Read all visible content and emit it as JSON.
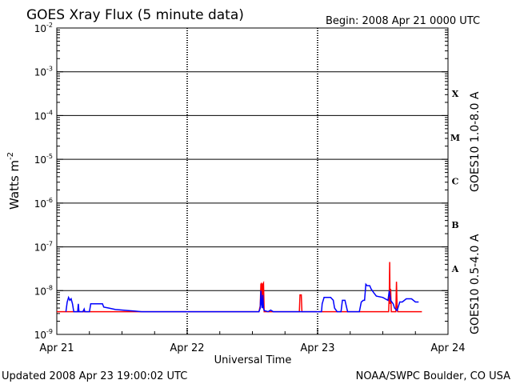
{
  "chart_data": {
    "type": "line",
    "title": "GOES Xray Flux (5 minute data)",
    "begin_label": "Begin:  2008 Apr 21 0000 UTC",
    "xlabel": "Universal Time",
    "ylabel": "Watts m",
    "ylabel_exp": "-2",
    "x_ticks": [
      "Apr 21",
      "Apr 22",
      "Apr 23",
      "Apr 24"
    ],
    "x_range_days": [
      0,
      3
    ],
    "y_scale": "log",
    "y_ticks": [
      {
        "base": "10",
        "exp": "-2",
        "value": 0.01
      },
      {
        "base": "10",
        "exp": "-3",
        "value": 0.001
      },
      {
        "base": "10",
        "exp": "-4",
        "value": 0.0001
      },
      {
        "base": "10",
        "exp": "-5",
        "value": 1e-05
      },
      {
        "base": "10",
        "exp": "-6",
        "value": 1e-06
      },
      {
        "base": "10",
        "exp": "-7",
        "value": 1e-07
      },
      {
        "base": "10",
        "exp": "-8",
        "value": 1e-08
      },
      {
        "base": "10",
        "exp": "-9",
        "value": 1e-09
      }
    ],
    "flare_classes": [
      {
        "label": "X",
        "range": [
          0.0001,
          0.001
        ]
      },
      {
        "label": "M",
        "range": [
          1e-05,
          0.0001
        ]
      },
      {
        "label": "C",
        "range": [
          1e-06,
          1e-05
        ]
      },
      {
        "label": "B",
        "range": [
          1e-07,
          1e-06
        ]
      },
      {
        "label": "A",
        "range": [
          1e-08,
          1e-07
        ]
      }
    ],
    "grid": true,
    "series": [
      {
        "name": "GOES10 1.0-8.0 A",
        "color": "#ff0000",
        "points": [
          [
            0.0,
            3.3e-09
          ],
          [
            1.55,
            3.3e-09
          ],
          [
            1.56,
            4.5e-09
          ],
          [
            1.565,
            1.4e-08
          ],
          [
            1.57,
            1.5e-08
          ],
          [
            1.575,
            4e-09
          ],
          [
            1.58,
            1.4e-08
          ],
          [
            1.585,
            1.5e-08
          ],
          [
            1.59,
            3.3e-09
          ],
          [
            1.86,
            3.3e-09
          ],
          [
            1.865,
            8e-09
          ],
          [
            1.875,
            8e-09
          ],
          [
            1.88,
            3.3e-09
          ],
          [
            2.545,
            3.3e-09
          ],
          [
            2.55,
            8e-09
          ],
          [
            2.553,
            4.5e-08
          ],
          [
            2.556,
            5e-09
          ],
          [
            2.56,
            1.1e-08
          ],
          [
            2.565,
            3.3e-09
          ],
          [
            2.6,
            3.3e-09
          ],
          [
            2.605,
            1.6e-08
          ],
          [
            2.61,
            4e-09
          ],
          [
            2.615,
            3.3e-09
          ],
          [
            2.8,
            3.3e-09
          ]
        ]
      },
      {
        "name": "GOES10 0.5-4.0 A",
        "color": "#0000ff",
        "points": [
          [
            0.07,
            3.3e-09
          ],
          [
            0.08,
            5.5e-09
          ],
          [
            0.09,
            7e-09
          ],
          [
            0.1,
            6e-09
          ],
          [
            0.11,
            6.5e-09
          ],
          [
            0.12,
            5e-09
          ],
          [
            0.13,
            3.3e-09
          ],
          [
            0.16,
            3.3e-09
          ],
          [
            0.165,
            5e-09
          ],
          [
            0.17,
            3.3e-09
          ],
          [
            0.2,
            3.3e-09
          ],
          [
            0.21,
            3.8e-09
          ],
          [
            0.215,
            3.3e-09
          ],
          [
            0.25,
            3.3e-09
          ],
          [
            0.26,
            5e-09
          ],
          [
            0.35,
            5e-09
          ],
          [
            0.36,
            4.2e-09
          ],
          [
            0.4,
            4e-09
          ],
          [
            0.45,
            3.7e-09
          ],
          [
            0.55,
            3.5e-09
          ],
          [
            0.6,
            3.4e-09
          ],
          [
            0.65,
            3.3e-09
          ],
          [
            1.55,
            3.3e-09
          ],
          [
            1.56,
            4e-09
          ],
          [
            1.565,
            1e-08
          ],
          [
            1.57,
            5e-09
          ],
          [
            1.575,
            4e-09
          ],
          [
            1.58,
            8e-09
          ],
          [
            1.585,
            4e-09
          ],
          [
            1.59,
            3.5e-09
          ],
          [
            1.62,
            3.3e-09
          ],
          [
            1.64,
            3.6e-09
          ],
          [
            1.66,
            3.3e-09
          ],
          [
            1.71,
            3.3e-09
          ],
          [
            2.03,
            3.3e-09
          ],
          [
            2.035,
            5e-09
          ],
          [
            2.05,
            7e-09
          ],
          [
            2.1,
            7e-09
          ],
          [
            2.12,
            6e-09
          ],
          [
            2.13,
            4e-09
          ],
          [
            2.15,
            3.3e-09
          ],
          [
            2.18,
            3.3e-09
          ],
          [
            2.19,
            6e-09
          ],
          [
            2.21,
            6e-09
          ],
          [
            2.23,
            3.3e-09
          ],
          [
            2.32,
            3.3e-09
          ],
          [
            2.335,
            5.5e-09
          ],
          [
            2.35,
            6e-09
          ],
          [
            2.36,
            6e-09
          ],
          [
            2.37,
            1.4e-08
          ],
          [
            2.38,
            1.3e-08
          ],
          [
            2.4,
            1.3e-08
          ],
          [
            2.41,
            1.1e-08
          ],
          [
            2.43,
            9e-09
          ],
          [
            2.45,
            7.5e-09
          ],
          [
            2.5,
            7e-09
          ],
          [
            2.54,
            6e-09
          ],
          [
            2.55,
            1e-08
          ],
          [
            2.56,
            6e-09
          ],
          [
            2.58,
            5e-09
          ],
          [
            2.59,
            4e-09
          ],
          [
            2.61,
            3.5e-09
          ],
          [
            2.63,
            5.5e-09
          ],
          [
            2.65,
            5.5e-09
          ],
          [
            2.68,
            6.5e-09
          ],
          [
            2.72,
            6.5e-09
          ],
          [
            2.75,
            5.5e-09
          ],
          [
            2.775,
            5.5e-09
          ]
        ]
      }
    ]
  },
  "footer": {
    "updated": "Updated 2008 Apr 23 19:00:02 UTC",
    "source": "NOAA/SWPC Boulder, CO USA"
  }
}
